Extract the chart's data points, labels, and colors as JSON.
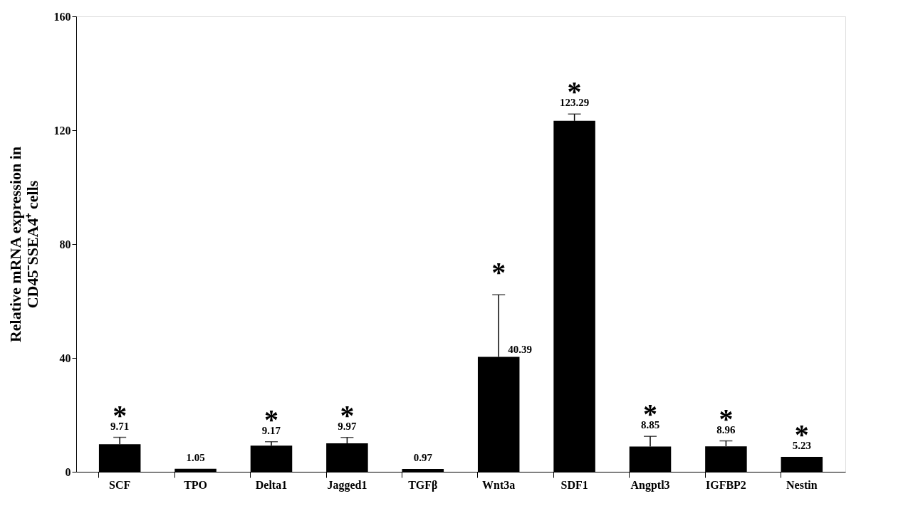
{
  "chart_data": {
    "type": "bar",
    "ylabel": "Relative mRNA expression in\nCD45⁻SSEA4⁺ cells",
    "categories": [
      "SCF",
      "TPO",
      "Delta1",
      "Jagged1",
      "TGFβ",
      "Wnt3a",
      "SDF1",
      "Angptl3",
      "IGFBP2",
      "Nestin"
    ],
    "values": [
      9.71,
      1.05,
      9.17,
      9.97,
      0.97,
      40.39,
      123.29,
      8.85,
      8.96,
      5.23
    ],
    "errors": [
      2.4,
      null,
      1.4,
      2.1,
      null,
      21.8,
      2.4,
      3.6,
      1.9,
      null
    ],
    "color": "#000000",
    "ylim": [
      0,
      160
    ],
    "yticks": [
      0,
      40,
      80,
      120,
      160
    ],
    "grid": false,
    "data_labels": true,
    "annotations": [
      {
        "text": "*",
        "x": "SCF",
        "y": 9.71
      },
      {
        "text": "*",
        "x": "Delta1",
        "y": 9.17
      },
      {
        "text": "*",
        "x": "Jagged1",
        "y": 9.97
      },
      {
        "text": "*",
        "x": "Wnt3a",
        "y": 40.39
      },
      {
        "text": "*",
        "x": "SDF1",
        "y": 123.29
      },
      {
        "text": "*",
        "x": "Angptl3",
        "y": 8.85
      },
      {
        "text": "*",
        "x": "IGFBP2",
        "y": 8.96
      },
      {
        "text": "*",
        "x": "Nestin",
        "y": 5.23
      }
    ]
  }
}
